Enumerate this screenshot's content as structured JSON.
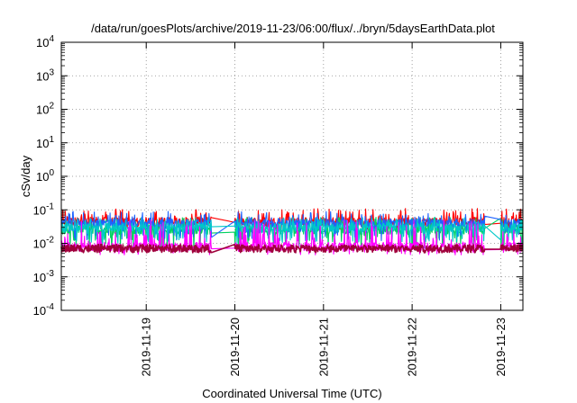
{
  "chart_data": {
    "type": "line",
    "title": "/data/run/goesPlots/archive/2019-11-23/06:00/flux/../bryn/5daysEarthData.plot",
    "xlabel": "Coordinated Universal Time (UTC)",
    "ylabel": "cSv/day",
    "y_scale": "log",
    "ylim": [
      0.0001,
      10000
    ],
    "y_ticks": [
      {
        "mant": "10",
        "exp": "-4"
      },
      {
        "mant": "10",
        "exp": "-3"
      },
      {
        "mant": "10",
        "exp": "-2"
      },
      {
        "mant": "10",
        "exp": "-1"
      },
      {
        "mant": "10",
        "exp": "0"
      },
      {
        "mant": "10",
        "exp": "1"
      },
      {
        "mant": "10",
        "exp": "2"
      },
      {
        "mant": "10",
        "exp": "3"
      },
      {
        "mant": "10",
        "exp": "4"
      }
    ],
    "xlim": [
      "2019-11-18 01:00",
      "2019-11-23 06:00"
    ],
    "x_ticks": [
      "2019-11-19",
      "2019-11-20",
      "2019-11-21",
      "2019-11-22",
      "2019-11-23"
    ],
    "grid": true,
    "legend": "none",
    "gaps": [
      [
        "2019-11-19 17:40",
        "2019-11-19 23:50"
      ],
      [
        "2019-11-22 19:40",
        "2019-11-22 23:50"
      ]
    ],
    "series": [
      {
        "color": "#ff0000",
        "min": 0.025,
        "max": 0.11,
        "typical": 0.045
      },
      {
        "color": "#00d060",
        "min": 0.006,
        "max": 0.06,
        "typical": 0.025
      },
      {
        "color": "#1e63ff",
        "min": 0.012,
        "max": 0.09,
        "typical": 0.04
      },
      {
        "color": "#00c8c8",
        "min": 0.01,
        "max": 0.06,
        "typical": 0.03
      },
      {
        "color": "#ff00ff",
        "min": 0.0045,
        "max": 0.05,
        "typical": 0.008
      },
      {
        "color": "#a0003c",
        "min": 0.0055,
        "max": 0.009,
        "typical": 0.007
      }
    ]
  }
}
